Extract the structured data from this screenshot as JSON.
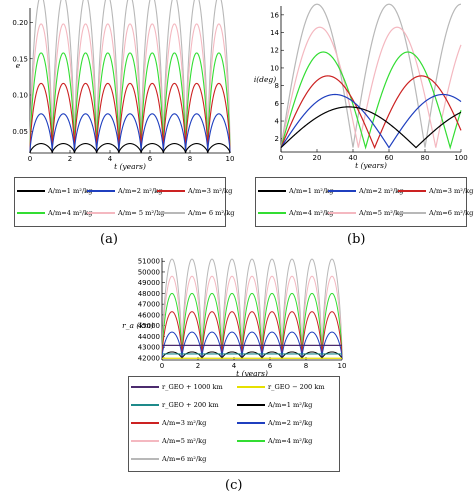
{
  "captions": [
    "(a)",
    "(b)",
    "(c)"
  ],
  "chart_data": [
    {
      "type": "line",
      "ylabel": "e",
      "xlabel": "t (years)",
      "xlim": [
        0,
        10
      ],
      "ylim": [
        0.02,
        0.22
      ],
      "xticks": [
        0,
        2,
        4,
        6,
        8,
        10
      ],
      "yticks": [
        0.05,
        0.1,
        0.15,
        0.2
      ],
      "ytick_labels": [
        "0.05",
        "0.10",
        "0.15",
        "0.20"
      ],
      "oscillations": 9,
      "series": [
        {
          "name": "A/m=1 m²/kg",
          "color": "#000000",
          "min": 0.02,
          "max": 0.033
        },
        {
          "name": "A/m=2 m²/kg",
          "color": "#1f3fbf",
          "min": 0.02,
          "max": 0.074
        },
        {
          "name": "A/m=3 m²/kg",
          "color": "#cc2222",
          "min": 0.02,
          "max": 0.116
        },
        {
          "name": "A/m=4 m²/kg",
          "color": "#33dd33",
          "min": 0.02,
          "max": 0.158
        },
        {
          "name": "A/m= 5 m²/kg",
          "color": "#f4b8c0",
          "min": 0.02,
          "max": 0.198
        },
        {
          "name": "A/m= 6 m²/kg",
          "color": "#b8b8b8",
          "min": 0.02,
          "max": 0.238
        }
      ]
    },
    {
      "type": "line",
      "ylabel": "i(deg)",
      "xlabel": "t (years)",
      "xlim": [
        0,
        100
      ],
      "ylim": [
        0.5,
        17
      ],
      "xticks": [
        0,
        20,
        40,
        60,
        80,
        100
      ],
      "yticks": [
        2,
        4,
        6,
        8,
        10,
        12,
        14,
        16
      ],
      "ytick_labels": [
        "2",
        "4",
        "6",
        "8",
        "10",
        "12",
        "14",
        "16"
      ],
      "series": [
        {
          "name": "A/m=1 m²/kg",
          "color": "#000000",
          "amp": 5.6,
          "period": 75
        },
        {
          "name": "A/m=2 m²/kg",
          "color": "#1f3fbf",
          "amp": 7.0,
          "period": 60
        },
        {
          "name": "A/m=3 m²/kg",
          "color": "#cc2222",
          "amp": 9.1,
          "period": 52
        },
        {
          "name": "A/m=4 m²/kg",
          "color": "#33dd33",
          "amp": 11.8,
          "period": 47
        },
        {
          "name": "A/m=5 m²/kg",
          "color": "#f4b8c0",
          "amp": 14.6,
          "period": 43
        },
        {
          "name": "A/m=6 m²/kg",
          "color": "#b8b8b8",
          "amp": 17.2,
          "period": 40
        }
      ]
    },
    {
      "type": "line",
      "ylabel": "r_a (km)",
      "xlabel": "t (years)",
      "xlim": [
        0,
        10
      ],
      "ylim": [
        41800,
        51300
      ],
      "xticks": [
        0,
        2,
        4,
        6,
        8,
        10
      ],
      "yticks": [
        42000,
        43000,
        44000,
        45000,
        46000,
        47000,
        48000,
        49000,
        50000,
        51000
      ],
      "ytick_labels": [
        "42000",
        "43000",
        "44000",
        "45000",
        "46000",
        "47000",
        "48000",
        "49000",
        "50000",
        "51000"
      ],
      "oscillations": 9,
      "reference_lines": [
        {
          "name": "r_GEO + 1000 km",
          "color": "#4b2b6e",
          "value": 43164
        },
        {
          "name": "r_GEO − 200 km",
          "color": "#e6e000",
          "value": 41964
        },
        {
          "name": "r_GEO + 200 km",
          "color": "#1e8a8a",
          "value": 42364
        }
      ],
      "series": [
        {
          "name": "A/m=1 m²/kg",
          "color": "#000000",
          "min": 41900,
          "max": 42550
        },
        {
          "name": "A/m=2 m²/kg",
          "color": "#1f3fbf",
          "min": 41900,
          "max": 44400
        },
        {
          "name": "A/m=3 m²/kg",
          "color": "#cc2222",
          "min": 41900,
          "max": 46300
        },
        {
          "name": "A/m=4 m²/kg",
          "color": "#33dd33",
          "min": 41900,
          "max": 48000
        },
        {
          "name": "A/m=5 m²/kg",
          "color": "#f4b8c0",
          "min": 41900,
          "max": 49600
        },
        {
          "name": "A/m=6 m²/kg",
          "color": "#b8b8b8",
          "min": 41900,
          "max": 51200
        }
      ]
    }
  ],
  "legends": {
    "a": [
      "A/m=1",
      "A/m=2",
      "A/m=3",
      "A/m=4",
      "A/m= 5",
      "A/m= 6"
    ],
    "b": [
      "A/m=1",
      "A/m=2",
      "A/m=3",
      "A/m=4",
      "A/m=5",
      "A/m=6"
    ],
    "c": [
      "r_GEO + 1000 km",
      "r_GEO − 200 km",
      "r_GEO + 200 km",
      "A/m=1",
      "A/m=3",
      "A/m=2",
      "A/m=5",
      "A/m=4",
      "A/m=6"
    ],
    "unit": "m²/kg"
  }
}
